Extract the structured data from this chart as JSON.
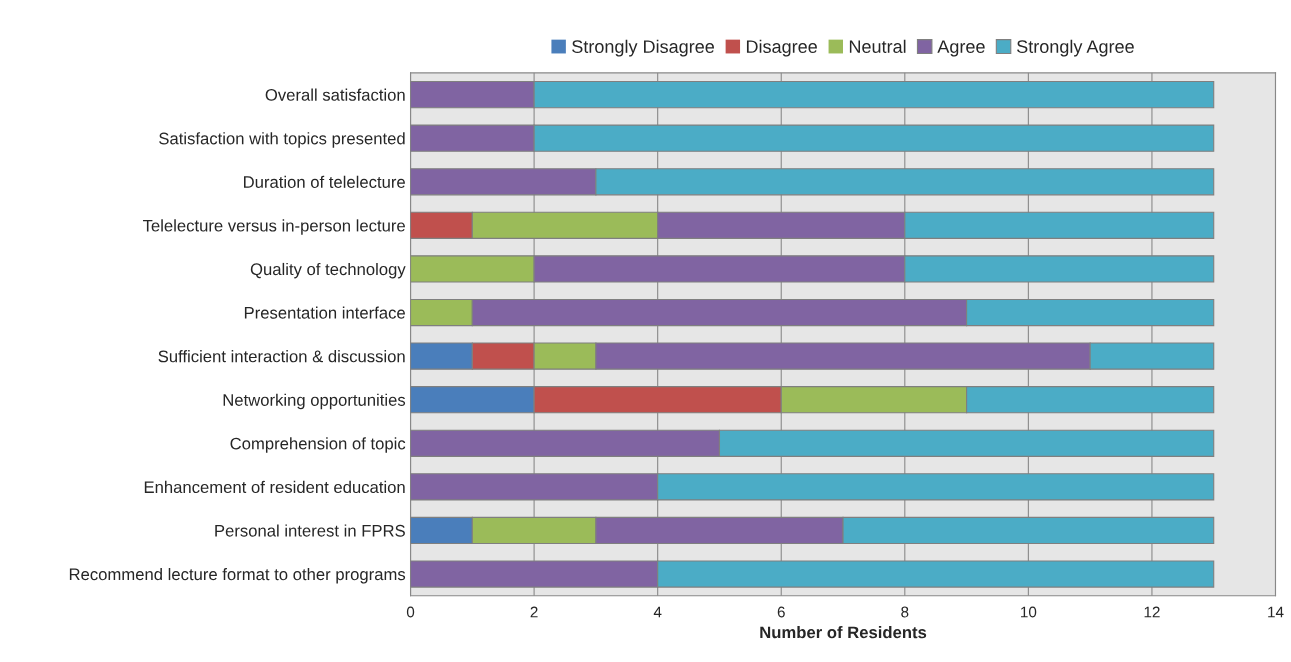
{
  "chart_data": {
    "type": "bar",
    "orientation": "horizontal",
    "stacked": true,
    "xlabel": "Number of Residents",
    "categories": [
      "Overall satisfaction",
      "Satisfaction with topics presented",
      "Duration of telelecture",
      "Telelecture versus in-person lecture",
      "Quality of technology",
      "Presentation interface",
      "Sufficient interaction & discussion",
      "Networking opportunities",
      "Comprehension of topic",
      "Enhancement of resident education",
      "Personal interest in FPRS",
      "Recommend lecture format to other programs"
    ],
    "series": [
      {
        "name": "Strongly Disagree",
        "color": "#4a7ebb",
        "values": [
          0,
          0,
          0,
          0,
          0,
          0,
          1,
          2,
          0,
          0,
          1,
          0
        ]
      },
      {
        "name": "Disagree",
        "color": "#c0504d",
        "values": [
          0,
          0,
          0,
          1,
          0,
          0,
          1,
          4,
          0,
          0,
          0,
          0
        ]
      },
      {
        "name": "Neutral",
        "color": "#9bbb59",
        "values": [
          0,
          0,
          0,
          3,
          2,
          1,
          1,
          3,
          0,
          0,
          2,
          0
        ]
      },
      {
        "name": "Agree",
        "color": "#8064a2",
        "values": [
          2,
          2,
          3,
          4,
          6,
          8,
          8,
          0,
          5,
          4,
          4,
          4
        ]
      },
      {
        "name": "Strongly Agree",
        "color": "#4bacc6",
        "values": [
          11,
          11,
          10,
          5,
          5,
          4,
          2,
          4,
          8,
          9,
          6,
          9
        ]
      }
    ],
    "xlim": [
      0,
      14
    ],
    "xticks": [
      0,
      2,
      4,
      6,
      8,
      10,
      12,
      14
    ],
    "grid": "x",
    "legend": "top"
  }
}
